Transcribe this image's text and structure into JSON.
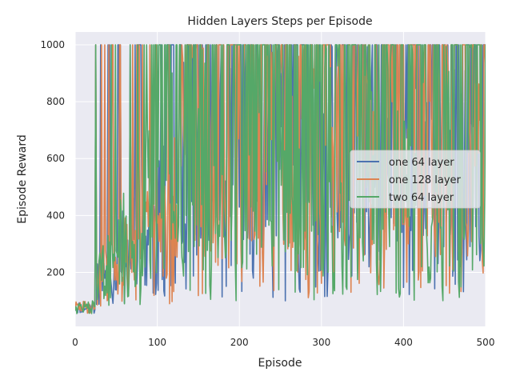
{
  "chart_data": {
    "type": "line",
    "title": "Hidden Layers Steps per Episode",
    "xlabel": "Episode",
    "ylabel": "Episode Reward",
    "xlim": [
      0,
      500
    ],
    "ylim": [
      10,
      1045
    ],
    "xticks": [
      0,
      100,
      200,
      300,
      400,
      500
    ],
    "yticks": [
      200,
      400,
      600,
      800,
      1000
    ],
    "grid": true,
    "legend_position": "right",
    "series": [
      {
        "name": "one 64 layer",
        "color": "#4c72b0"
      },
      {
        "name": "one 128 layer",
        "color": "#dd8452"
      },
      {
        "name": "two 64 layer",
        "color": "#55a868"
      }
    ],
    "x_points": 501,
    "description_note": ""
  },
  "colors": {
    "plot_background": "#eaeaf2",
    "grid": "#ffffff",
    "text": "#262626"
  }
}
